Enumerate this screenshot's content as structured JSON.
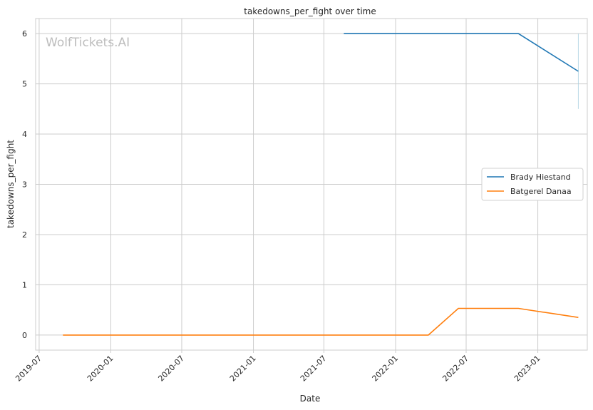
{
  "watermark": "WolfTickets.AI",
  "chart_data": {
    "type": "line",
    "title": "takedowns_per_fight over time",
    "xlabel": "Date",
    "ylabel": "takedowns_per_fight",
    "x_ticks": [
      "2019-07",
      "2020-01",
      "2020-07",
      "2021-01",
      "2021-07",
      "2022-01",
      "2022-07",
      "2023-01"
    ],
    "y_ticks": [
      0,
      1,
      2,
      3,
      4,
      5,
      6
    ],
    "xlim": [
      "2019-06-22",
      "2023-05-08"
    ],
    "ylim": [
      -0.3,
      6.3
    ],
    "grid": true,
    "legend_position": "center-right",
    "series": [
      {
        "name": "Brady Hiestand",
        "color": "#1f77b4",
        "points": [
          {
            "x": "2021-08-21",
            "y": 6.0
          },
          {
            "x": "2022-11-12",
            "y": 6.0
          },
          {
            "x": "2023-04-15",
            "y": 5.25
          }
        ],
        "error_band": {
          "x": "2023-04-15",
          "low": 4.5,
          "high": 6.0
        }
      },
      {
        "name": "Batgerel Danaa",
        "color": "#ff7f0e",
        "points": [
          {
            "x": "2019-08-31",
            "y": 0.0
          },
          {
            "x": "2022-03-26",
            "y": 0.0
          },
          {
            "x": "2022-06-11",
            "y": 0.53
          },
          {
            "x": "2022-11-12",
            "y": 0.53
          },
          {
            "x": "2023-04-15",
            "y": 0.35
          }
        ]
      }
    ]
  }
}
